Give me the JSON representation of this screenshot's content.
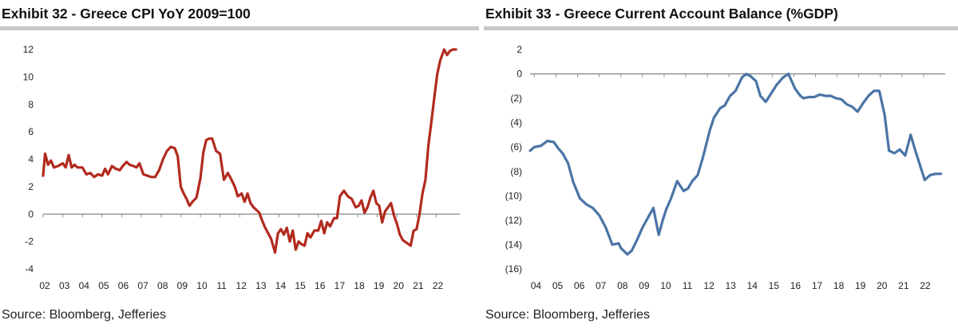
{
  "charts": [
    {
      "title": "Exhibit 32 - Greece CPI YoY 2009=100",
      "source": "Source: Bloomberg, Jefferies",
      "chart_data": {
        "type": "line",
        "title": "Exhibit 32 - Greece CPI YoY 2009=100",
        "xlabel": "",
        "ylabel": "",
        "ylim": [
          -4,
          12
        ],
        "y_ticks": [
          12,
          10,
          8,
          6,
          4,
          2,
          0,
          -2,
          -4
        ],
        "y_tick_labels": [
          "12",
          "10",
          "8",
          "6",
          "4",
          "2",
          "0",
          "-2",
          "-4"
        ],
        "xlim": [
          2002,
          2023.2
        ],
        "x_ticks": [
          2002,
          2003,
          2004,
          2005,
          2006,
          2007,
          2008,
          2009,
          2010,
          2011,
          2012,
          2013,
          2014,
          2015,
          2016,
          2017,
          2018,
          2019,
          2020,
          2021,
          2022
        ],
        "x_tick_labels": [
          "02",
          "03",
          "04",
          "05",
          "06",
          "07",
          "08",
          "09",
          "10",
          "11",
          "12",
          "13",
          "14",
          "15",
          "16",
          "17",
          "18",
          "19",
          "20",
          "21",
          "22"
        ],
        "grid": false,
        "legend": "none",
        "color": "#b22a1e",
        "series": [
          {
            "x": [
              2002.0,
              2002.1,
              2002.25,
              2002.4,
              2002.55,
              2002.75,
              2003.0,
              2003.15,
              2003.3,
              2003.45,
              2003.6,
              2003.75,
              2004.0,
              2004.2,
              2004.4,
              2004.6,
              2004.8,
              2005.0,
              2005.15,
              2005.3,
              2005.5,
              2005.7,
              2005.9,
              2006.05,
              2006.25,
              2006.4,
              2006.6,
              2006.75,
              2006.9,
              2007.1,
              2007.3,
              2007.5,
              2007.7,
              2007.9,
              2008.1,
              2008.3,
              2008.5,
              2008.7,
              2008.85,
              2009.0,
              2009.15,
              2009.3,
              2009.45,
              2009.6,
              2009.8,
              2010.0,
              2010.15,
              2010.3,
              2010.45,
              2010.6,
              2010.8,
              2011.0,
              2011.2,
              2011.4,
              2011.55,
              2011.75,
              2011.9,
              2012.1,
              2012.25,
              2012.4,
              2012.55,
              2012.7,
              2012.85,
              2013.0,
              2013.15,
              2013.3,
              2013.45,
              2013.6,
              2013.8,
              2013.95,
              2014.1,
              2014.25,
              2014.4,
              2014.55,
              2014.7,
              2014.85,
              2015.0,
              2015.15,
              2015.3,
              2015.45,
              2015.6,
              2015.8,
              2016.0,
              2016.15,
              2016.3,
              2016.45,
              2016.6,
              2016.8,
              2016.95,
              2017.1,
              2017.3,
              2017.5,
              2017.7,
              2017.9,
              2018.05,
              2018.2,
              2018.35,
              2018.5,
              2018.65,
              2018.8,
              2018.95,
              2019.1,
              2019.25,
              2019.4,
              2019.55,
              2019.7,
              2019.85,
              2020.0,
              2020.15,
              2020.3,
              2020.5,
              2020.7,
              2020.85,
              2021.0,
              2021.15,
              2021.3,
              2021.45,
              2021.6,
              2021.75,
              2021.9,
              2022.05,
              2022.2,
              2022.4,
              2022.55,
              2022.7,
              2022.85,
              2023.0
            ],
            "values": [
              2.8,
              4.4,
              3.6,
              3.9,
              3.4,
              3.5,
              3.7,
              3.4,
              4.3,
              3.4,
              3.6,
              3.4,
              3.4,
              2.9,
              3.0,
              2.7,
              2.9,
              2.8,
              3.3,
              2.9,
              3.5,
              3.3,
              3.2,
              3.5,
              3.8,
              3.6,
              3.5,
              3.4,
              3.7,
              2.9,
              2.8,
              2.7,
              2.7,
              3.2,
              4.0,
              4.6,
              4.9,
              4.8,
              4.2,
              2.0,
              1.5,
              1.1,
              0.6,
              0.9,
              1.2,
              2.6,
              4.5,
              5.4,
              5.5,
              5.5,
              4.6,
              4.4,
              2.5,
              3.0,
              2.6,
              2.0,
              1.3,
              1.5,
              0.9,
              1.5,
              0.8,
              0.5,
              0.3,
              0.1,
              -0.5,
              -1.0,
              -1.4,
              -1.8,
              -2.8,
              -1.4,
              -1.1,
              -1.5,
              -1.0,
              -2.0,
              -1.2,
              -2.6,
              -2.0,
              -2.2,
              -2.3,
              -1.4,
              -1.7,
              -1.2,
              -1.2,
              -0.5,
              -1.4,
              -0.6,
              -0.9,
              -0.3,
              -0.3,
              1.3,
              1.7,
              1.3,
              1.1,
              0.5,
              0.6,
              1.0,
              0.1,
              0.5,
              1.2,
              1.7,
              0.8,
              0.6,
              -0.6,
              0.2,
              0.5,
              0.8,
              -0.1,
              -0.7,
              -1.5,
              -1.9,
              -2.1,
              -2.3,
              -1.2,
              -1.1,
              0.0,
              1.5,
              2.5,
              5.0,
              6.7,
              8.5,
              10.2,
              11.2,
              12.0,
              11.6,
              11.9,
              12.0,
              12.0
            ]
          }
        ]
      }
    },
    {
      "title": "Exhibit 33 - Greece Current Account Balance (%GDP)",
      "source": "Source: Bloomberg, Jefferies",
      "chart_data": {
        "type": "line",
        "title": "Exhibit 33 - Greece Current Account Balance (%GDP)",
        "xlabel": "",
        "ylabel": "",
        "ylim": [
          -16,
          2
        ],
        "y_ticks": [
          2,
          0,
          -2,
          -4,
          -6,
          -8,
          -10,
          -12,
          -14,
          -16
        ],
        "y_tick_labels": [
          "2",
          "0",
          "(2)",
          "(4)",
          "(6)",
          "(8)",
          "(10)",
          "(12)",
          "(14)",
          "(16)"
        ],
        "xlim": [
          2003.8,
          2023.0
        ],
        "x_ticks": [
          2004,
          2005,
          2006,
          2007,
          2008,
          2009,
          2010,
          2011,
          2012,
          2013,
          2014,
          2015,
          2016,
          2017,
          2018,
          2019,
          2020,
          2021,
          2022
        ],
        "x_tick_labels": [
          "04",
          "05",
          "06",
          "07",
          "08",
          "09",
          "10",
          "11",
          "12",
          "13",
          "14",
          "15",
          "16",
          "17",
          "18",
          "19",
          "20",
          "21",
          "22"
        ],
        "grid": false,
        "legend": "none",
        "color": "#4a74a6",
        "series": [
          {
            "x": [
              2003.8,
              2004.0,
              2004.3,
              2004.6,
              2004.9,
              2005.1,
              2005.3,
              2005.55,
              2005.8,
              2006.1,
              2006.4,
              2006.7,
              2007.0,
              2007.3,
              2007.6,
              2007.9,
              2008.0,
              2008.3,
              2008.5,
              2008.75,
              2009.0,
              2009.25,
              2009.5,
              2009.75,
              2009.95,
              2010.1,
              2010.3,
              2010.6,
              2010.9,
              2011.1,
              2011.3,
              2011.55,
              2011.8,
              2012.1,
              2012.3,
              2012.6,
              2012.8,
              2013.05,
              2013.3,
              2013.6,
              2013.8,
              2014.0,
              2014.25,
              2014.45,
              2014.7,
              2014.95,
              2015.2,
              2015.5,
              2015.75,
              2016.05,
              2016.3,
              2016.45,
              2016.7,
              2016.95,
              2017.2,
              2017.45,
              2017.7,
              2017.95,
              2018.2,
              2018.45,
              2018.7,
              2018.95,
              2019.2,
              2019.45,
              2019.7,
              2019.95,
              2020.2,
              2020.4,
              2020.65,
              2020.9,
              2021.15,
              2021.4,
              2021.6,
              2021.8,
              2022.05,
              2022.3,
              2022.55,
              2022.8
            ],
            "values": [
              -6.3,
              -6.0,
              -5.9,
              -5.5,
              -5.6,
              -6.1,
              -6.5,
              -7.3,
              -8.9,
              -10.2,
              -10.7,
              -11.0,
              -11.6,
              -12.6,
              -14.0,
              -13.9,
              -14.3,
              -14.8,
              -14.5,
              -13.6,
              -12.6,
              -11.8,
              -11.0,
              -13.2,
              -11.9,
              -11.1,
              -10.3,
              -8.8,
              -9.6,
              -9.4,
              -8.8,
              -8.3,
              -6.8,
              -4.7,
              -3.6,
              -2.8,
              -2.6,
              -1.8,
              -1.4,
              -0.3,
              0.0,
              -0.2,
              -0.6,
              -1.8,
              -2.3,
              -1.6,
              -0.9,
              -0.3,
              0.0,
              -1.2,
              -1.8,
              -2.0,
              -1.9,
              -1.9,
              -1.7,
              -1.8,
              -1.8,
              -2.0,
              -2.1,
              -2.5,
              -2.7,
              -3.1,
              -2.4,
              -1.8,
              -1.4,
              -1.4,
              -3.4,
              -6.3,
              -6.5,
              -6.2,
              -6.7,
              -5.0,
              -6.2,
              -7.3,
              -8.7,
              -8.3,
              -8.2,
              -8.2
            ]
          }
        ]
      }
    }
  ]
}
